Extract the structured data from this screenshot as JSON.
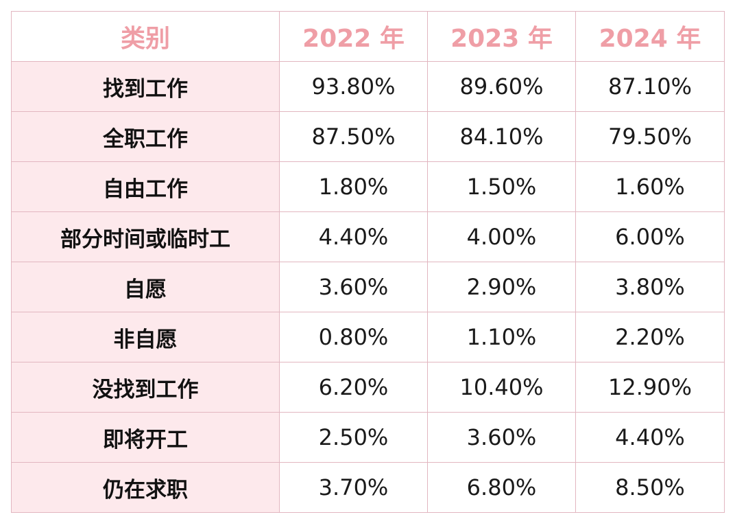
{
  "table": {
    "headers": [
      "类别",
      "2022 年",
      "2023 年",
      "2024 年"
    ],
    "rows": [
      [
        "找到工作",
        "93.80%",
        "89.60%",
        "87.10%"
      ],
      [
        "全职工作",
        "87.50%",
        "84.10%",
        "79.50%"
      ],
      [
        "自由工作",
        "1.80%",
        "1.50%",
        "1.60%"
      ],
      [
        "部分时间或临时工",
        "4.40%",
        "4.00%",
        "6.00%"
      ],
      [
        "自愿",
        "3.60%",
        "2.90%",
        "3.80%"
      ],
      [
        "非自愿",
        "0.80%",
        "1.10%",
        "2.20%"
      ],
      [
        "没找到工作",
        "6.20%",
        "10.40%",
        "12.90%"
      ],
      [
        "即将开工",
        "2.50%",
        "3.60%",
        "4.40%"
      ],
      [
        "仍在求职",
        "3.70%",
        "6.80%",
        "8.50%"
      ]
    ]
  },
  "colors": {
    "header_text": "#ef9ea6",
    "category_bg": "#fde9ec",
    "border": "#e2b6c0"
  }
}
